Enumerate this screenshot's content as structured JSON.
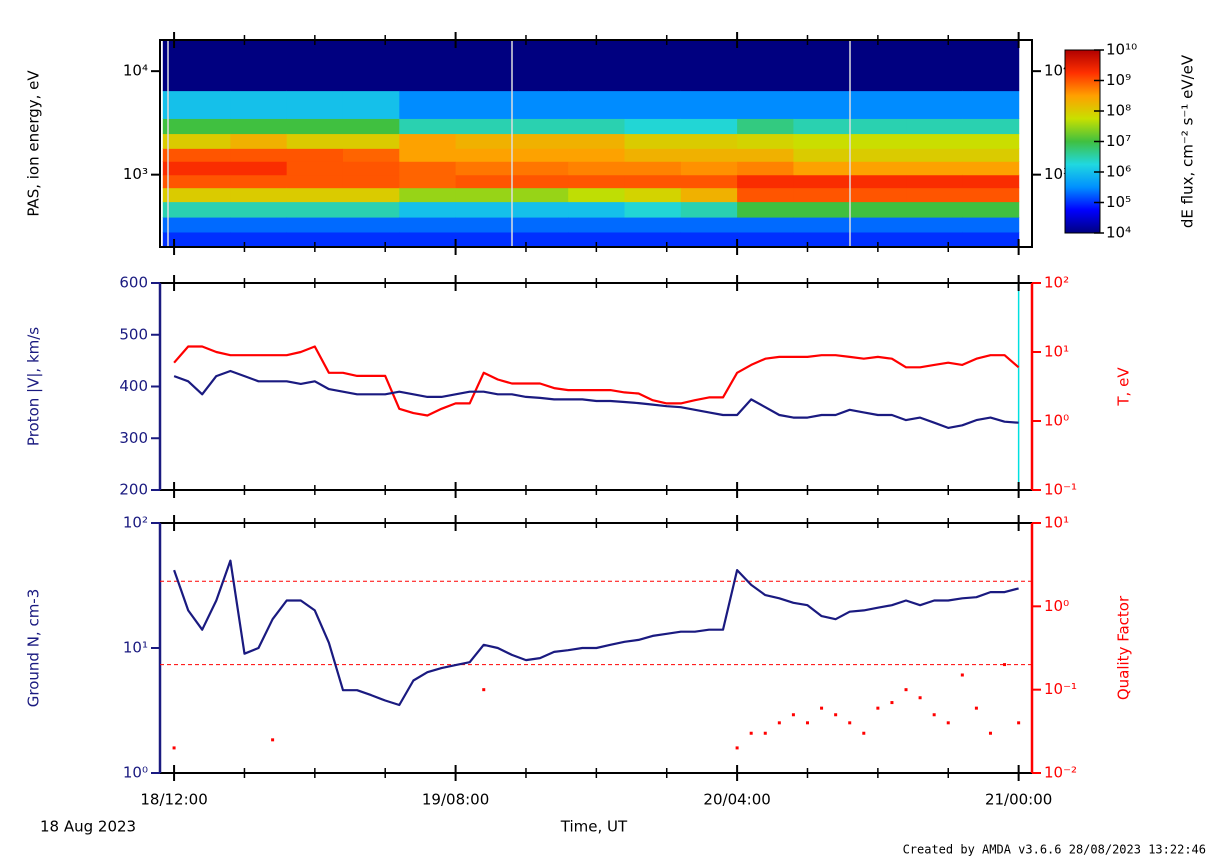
{
  "x_axis": {
    "xlim": [
      -1,
      60.95
    ],
    "label": "Time, UT",
    "xticks": [
      {
        "value": 0,
        "label": "18/12:00"
      },
      {
        "value": 20,
        "label": "19/08:00"
      },
      {
        "value": 40,
        "label": "20/04:00"
      },
      {
        "value": 60,
        "label": "21/00:00"
      }
    ],
    "xminor": [
      5,
      10,
      15,
      25,
      30,
      35,
      45,
      50,
      55
    ]
  },
  "date": "18 Aug 2023",
  "footer": "Created by AMDA v3.6.6 28/08/2023 13:22:46",
  "chart_data": [
    {
      "type": "heatmap",
      "ylabel": "PAS, ion energy, eV",
      "yscale": "log",
      "ylim": [
        200,
        20000
      ],
      "yticks": [
        {
          "value": 1000,
          "label": "10³"
        },
        {
          "value": 10000,
          "label": "10⁴"
        }
      ],
      "x_edges": [
        -0.8,
        4,
        8,
        12,
        16,
        20,
        24,
        28,
        32,
        36,
        40,
        44,
        48,
        52,
        56,
        60
      ],
      "y_edges": [
        200,
        280,
        390,
        550,
        750,
        1000,
        1350,
        1800,
        2500,
        3500,
        6500,
        20000
      ],
      "z": [
        [
          100000.0,
          200000.0,
          3000000.0,
          100000000.0,
          1000000000.0,
          2000000000.0,
          1000000000.0,
          100000000.0,
          10000000.0,
          1000000.0,
          10000.0
        ],
        [
          100000.0,
          200000.0,
          3000000.0,
          100000000.0,
          1000000000.0,
          2000000000.0,
          1000000000.0,
          200000000.0,
          10000000.0,
          1000000.0,
          10000.0
        ],
        [
          100000.0,
          200000.0,
          3000000.0,
          100000000.0,
          1000000000.0,
          1000000000.0,
          1000000000.0,
          100000000.0,
          10000000.0,
          1000000.0,
          10000.0
        ],
        [
          100000.0,
          200000.0,
          3000000.0,
          100000000.0,
          1000000000.0,
          1000000000.0,
          800000000.0,
          100000000.0,
          10000000.0,
          1000000.0,
          10000.0
        ],
        [
          100000.0,
          200000.0,
          1000000.0,
          30000000.0,
          800000000.0,
          800000000.0,
          300000000.0,
          300000000.0,
          3000000.0,
          300000.0,
          10000.0
        ],
        [
          100000.0,
          200000.0,
          1000000.0,
          30000000.0,
          1000000000.0,
          600000000.0,
          300000000.0,
          200000000.0,
          3000000.0,
          300000.0,
          10000.0
        ],
        [
          100000.0,
          200000.0,
          1000000.0,
          30000000.0,
          1000000000.0,
          600000000.0,
          300000000.0,
          200000000.0,
          3000000.0,
          300000.0,
          10000.0
        ],
        [
          100000.0,
          200000.0,
          1000000.0,
          50000000.0,
          1000000000.0,
          500000000.0,
          300000000.0,
          200000000.0,
          3000000.0,
          300000.0,
          10000.0
        ],
        [
          100000.0,
          200000.0,
          2000000.0,
          80000000.0,
          1000000000.0,
          500000000.0,
          200000000.0,
          100000000.0,
          2000000.0,
          300000.0,
          10000.0
        ],
        [
          100000.0,
          200000.0,
          3000000.0,
          200000000.0,
          1000000000.0,
          400000000.0,
          200000000.0,
          100000000.0,
          2000000.0,
          300000.0,
          10000.0
        ],
        [
          100000.0,
          200000.0,
          10000000.0,
          1000000000.0,
          2000000000.0,
          500000000.0,
          200000000.0,
          80000000.0,
          5000000.0,
          300000.0,
          10000.0
        ],
        [
          100000.0,
          200000.0,
          10000000.0,
          1000000000.0,
          2000000000.0,
          300000000.0,
          100000000.0,
          60000000.0,
          3000000.0,
          300000.0,
          10000.0
        ],
        [
          100000.0,
          200000.0,
          10000000.0,
          1000000000.0,
          2000000000.0,
          300000000.0,
          100000000.0,
          60000000.0,
          3000000.0,
          300000.0,
          10000.0
        ],
        [
          100000.0,
          200000.0,
          10000000.0,
          1000000000.0,
          2000000000.0,
          300000000.0,
          100000000.0,
          60000000.0,
          3000000.0,
          300000.0,
          10000.0
        ],
        [
          100000.0,
          200000.0,
          10000000.0,
          1000000000.0,
          2000000000.0,
          300000000.0,
          100000000.0,
          60000000.0,
          3000000.0,
          300000.0,
          10000.0
        ]
      ],
      "clim": [
        10000.0,
        10000000000.0
      ],
      "cticks": [
        {
          "value": 10000.0,
          "label": "10⁴"
        },
        {
          "value": 100000.0,
          "label": "10⁵"
        },
        {
          "value": 1000000.0,
          "label": "10⁶"
        },
        {
          "value": 10000000.0,
          "label": "10⁷"
        },
        {
          "value": 100000000.0,
          "label": "10⁸"
        },
        {
          "value": 1000000000.0,
          "label": "10⁹"
        },
        {
          "value": 10000000000.0,
          "label": "10¹⁰"
        }
      ],
      "clabel": "dE flux, cm⁻² s⁻¹ eV/eV",
      "colormap": [
        "#000080",
        "#0000ff",
        "#0090ff",
        "#20d8e0",
        "#40c040",
        "#c8e000",
        "#ffa000",
        "#ff3000",
        "#b00000"
      ]
    },
    {
      "type": "line",
      "x": [
        0,
        1,
        2,
        3,
        4,
        5,
        6,
        7,
        8,
        9,
        10,
        11,
        12,
        13,
        14,
        15,
        16,
        17,
        18,
        19,
        20,
        21,
        22,
        23,
        24,
        25,
        26,
        27,
        28,
        29,
        30,
        31,
        32,
        33,
        34,
        35,
        36,
        37,
        38,
        39,
        40,
        41,
        42,
        43,
        44,
        45,
        46,
        47,
        48,
        49,
        50,
        51,
        52,
        53,
        54,
        55,
        56,
        57,
        58,
        59,
        60
      ],
      "ylabel": "Proton |V|, km/s",
      "ylim": [
        200,
        600
      ],
      "yticks": [
        200,
        300,
        400,
        500,
        600
      ],
      "axis_color": "#1a1a80",
      "y2label": "T, eV",
      "y2scale": "log",
      "y2lim": [
        0.1,
        100
      ],
      "y2_color": "#ff0000",
      "y2ticks": [
        {
          "value": 0.1,
          "label": "10⁻¹"
        },
        {
          "value": 1,
          "label": "10⁰"
        },
        {
          "value": 10,
          "label": "10¹"
        },
        {
          "value": 100,
          "label": "10²"
        }
      ],
      "vline": 60,
      "vline_color": "#00e0e0",
      "series": [
        {
          "color": "#ff0000",
          "axis": "y2",
          "style": "line",
          "values": [
            7,
            12,
            12,
            10,
            9,
            9,
            9,
            9,
            9,
            10,
            12,
            5,
            5,
            4.5,
            4.5,
            4.5,
            1.5,
            1.3,
            1.2,
            1.5,
            1.8,
            1.8,
            5,
            4,
            3.5,
            3.5,
            3.5,
            3,
            2.8,
            2.8,
            2.8,
            2.8,
            2.6,
            2.5,
            2,
            1.8,
            1.8,
            2,
            2.2,
            2.2,
            5,
            6.5,
            8,
            8.5,
            8.5,
            8.5,
            9,
            9,
            8.5,
            8,
            8.5,
            8,
            6,
            6,
            6.5,
            7,
            6.5,
            8,
            9,
            9,
            6
          ]
        },
        {
          "color": "#1a1a80",
          "axis": "y",
          "style": "line",
          "values": [
            420,
            410,
            385,
            420,
            430,
            420,
            410,
            410,
            410,
            405,
            410,
            395,
            390,
            385,
            385,
            385,
            390,
            385,
            380,
            380,
            385,
            390,
            390,
            385,
            385,
            380,
            378,
            375,
            375,
            375,
            372,
            372,
            370,
            368,
            365,
            362,
            360,
            355,
            350,
            345,
            345,
            375,
            360,
            345,
            340,
            340,
            345,
            345,
            355,
            350,
            345,
            345,
            335,
            340,
            330,
            320,
            325,
            335,
            340,
            332,
            330
          ]
        }
      ]
    },
    {
      "type": "line",
      "x": [
        0,
        1,
        2,
        3,
        4,
        5,
        6,
        7,
        8,
        9,
        10,
        11,
        12,
        13,
        14,
        15,
        16,
        17,
        18,
        19,
        20,
        21,
        22,
        23,
        24,
        25,
        26,
        27,
        28,
        29,
        30,
        31,
        32,
        33,
        34,
        35,
        36,
        37,
        38,
        39,
        40,
        41,
        42,
        43,
        44,
        45,
        46,
        47,
        48,
        49,
        50,
        51,
        52,
        53,
        54,
        55,
        56,
        57,
        58,
        59,
        60
      ],
      "ylabel": "Ground N, cm-3",
      "yscale": "log",
      "ylim": [
        1,
        100
      ],
      "axis_color": "#1a1a80",
      "yticks": [
        {
          "value": 1,
          "label": "10⁰"
        },
        {
          "value": 10,
          "label": "10¹"
        },
        {
          "value": 100,
          "label": "10²"
        }
      ],
      "y2label": "Quality Factor",
      "y2scale": "log",
      "y2lim": [
        0.01,
        10
      ],
      "y2_color": "#ff0000",
      "y2ticks": [
        {
          "value": 0.01,
          "label": "10⁻²"
        },
        {
          "value": 0.1,
          "label": "10⁻¹"
        },
        {
          "value": 1,
          "label": "10⁰"
        },
        {
          "value": 10,
          "label": "10¹"
        }
      ],
      "hlines": [
        2,
        0.2
      ],
      "hline_color": "#ff0000",
      "series": [
        {
          "color": "#1a1a80",
          "axis": "y",
          "style": "line",
          "values": [
            42,
            20,
            14,
            24,
            50,
            9,
            10,
            17,
            24,
            24,
            20,
            11,
            4.6,
            4.6,
            4.2,
            3.8,
            3.5,
            5.5,
            6.4,
            6.9,
            7.3,
            7.7,
            10.6,
            10,
            8.8,
            8,
            8.3,
            9.3,
            9.6,
            10,
            10,
            10.6,
            11.2,
            11.6,
            12.5,
            13,
            13.5,
            13.5,
            14,
            14,
            42,
            32,
            26.5,
            25,
            23,
            22,
            18,
            17,
            19.5,
            20,
            21,
            22,
            24,
            22,
            24,
            24,
            25,
            25.5,
            28,
            28,
            30
          ]
        },
        {
          "color": "#ff0000",
          "axis": "y2",
          "style": "dots",
          "values": [
            0.02,
            null,
            null,
            null,
            null,
            null,
            null,
            0.025,
            null,
            null,
            null,
            null,
            null,
            null,
            null,
            null,
            null,
            null,
            null,
            null,
            null,
            null,
            0.1,
            null,
            null,
            null,
            null,
            null,
            null,
            null,
            null,
            null,
            null,
            null,
            null,
            null,
            null,
            null,
            null,
            null,
            0.02,
            0.03,
            0.03,
            0.04,
            0.05,
            0.04,
            0.06,
            0.05,
            0.04,
            0.03,
            0.06,
            0.07,
            0.1,
            0.08,
            0.05,
            0.04,
            0.15,
            0.06,
            0.03,
            0.2,
            0.04
          ]
        }
      ]
    }
  ]
}
